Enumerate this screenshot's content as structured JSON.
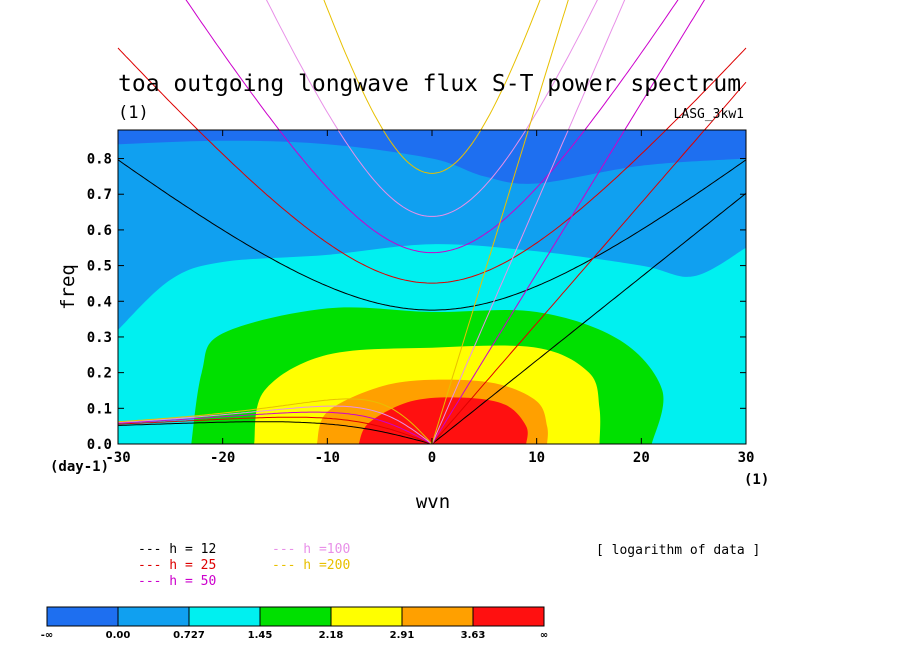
{
  "chart_data": {
    "type": "contour",
    "title": "toa outgoing longwave flux S-T power spectrum",
    "title_units": "(1)",
    "model_label": "LASG_3kw1",
    "xlabel": "wvn",
    "ylabel": "freq",
    "x_unit_label": "(1)",
    "y_unit_label": "(day-1)",
    "xlim": [
      -30,
      30
    ],
    "ylim": [
      0,
      0.88
    ],
    "xticks": [
      -30,
      -20,
      -10,
      0,
      10,
      20,
      30
    ],
    "yticks": [
      0.0,
      0.1,
      0.2,
      0.3,
      0.4,
      0.5,
      0.6,
      0.7,
      0.8
    ],
    "note": "[ logarithm of data ]",
    "colorbar": {
      "labels": [
        "-∞",
        "0.00",
        "0.727",
        "1.45",
        "2.18",
        "2.91",
        "3.63",
        "∞"
      ],
      "colors": [
        "#1e6ff0",
        "#10a0f0",
        "#00f0f0",
        "#00e000",
        "#ffff00",
        "#ffa000",
        "#ff1010"
      ]
    },
    "contour_regions": [
      {
        "level": "-∞ to 0.00",
        "color": "#1e6ff0",
        "description_points": [
          [
            -30,
            0.88
          ],
          [
            30,
            0.88
          ]
        ]
      },
      {
        "level": "0.00 to 0.727",
        "color": "#10a0f0",
        "boundary": [
          [
            -30,
            0.84
          ],
          [
            -20,
            0.85
          ],
          [
            -10,
            0.84
          ],
          [
            0,
            0.8
          ],
          [
            5,
            0.75
          ],
          [
            10,
            0.73
          ],
          [
            20,
            0.78
          ],
          [
            30,
            0.8
          ]
        ]
      },
      {
        "level": "0.727 to 1.45",
        "color": "#00f0f0",
        "boundary": [
          [
            -30,
            0.32
          ],
          [
            -25,
            0.46
          ],
          [
            -20,
            0.51
          ],
          [
            -10,
            0.53
          ],
          [
            0,
            0.56
          ],
          [
            10,
            0.54
          ],
          [
            20,
            0.5
          ],
          [
            25,
            0.47
          ],
          [
            30,
            0.55
          ]
        ]
      },
      {
        "level": "1.45 to 2.18",
        "color": "#00e000",
        "boundary": [
          [
            -23,
            0.0
          ],
          [
            -22,
            0.2
          ],
          [
            -20,
            0.31
          ],
          [
            -10,
            0.38
          ],
          [
            0,
            0.37
          ],
          [
            10,
            0.37
          ],
          [
            18,
            0.29
          ],
          [
            22,
            0.15
          ],
          [
            21,
            0.0
          ]
        ]
      },
      {
        "level": "2.18 to 2.91",
        "color": "#ffff00",
        "boundary": [
          [
            -17,
            0.0
          ],
          [
            -16,
            0.15
          ],
          [
            -10,
            0.25
          ],
          [
            0,
            0.27
          ],
          [
            10,
            0.27
          ],
          [
            15,
            0.2
          ],
          [
            16,
            0.1
          ],
          [
            16,
            0.0
          ]
        ]
      },
      {
        "level": "2.91 to 3.63",
        "color": "#ffa000",
        "boundary": [
          [
            -11,
            0.0
          ],
          [
            -10,
            0.09
          ],
          [
            -5,
            0.16
          ],
          [
            0,
            0.18
          ],
          [
            6,
            0.17
          ],
          [
            10,
            0.12
          ],
          [
            11,
            0.05
          ],
          [
            11,
            0.0
          ]
        ]
      },
      {
        "level": "3.63 to ∞",
        "color": "#ff1010",
        "boundary": [
          [
            -7,
            0.0
          ],
          [
            -6,
            0.06
          ],
          [
            -2,
            0.12
          ],
          [
            3,
            0.13
          ],
          [
            7,
            0.11
          ],
          [
            9,
            0.05
          ],
          [
            9,
            0.0
          ]
        ]
      }
    ],
    "series": [
      {
        "name": "h = 12",
        "color": "#000000"
      },
      {
        "name": "h = 25",
        "color": "#dd0000"
      },
      {
        "name": "h = 50",
        "color": "#cc00cc"
      },
      {
        "name": "h =100",
        "color": "#e890e8"
      },
      {
        "name": "h =200",
        "color": "#e8c000"
      }
    ],
    "equivalent_depths_m": [
      12,
      25,
      50,
      100,
      200
    ]
  }
}
